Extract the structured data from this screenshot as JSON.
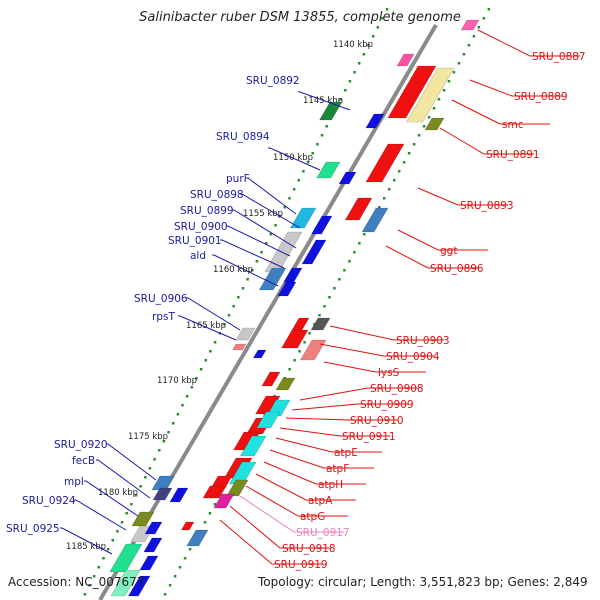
{
  "title": "Salinibacter ruber DSM 13855, complete genome",
  "footer": {
    "accession": "Accession: NC_007677",
    "topology": "Topology: circular; Length: 3,551,823 bp; Genes: 2,849"
  },
  "colors": {
    "backbone": "#8a8a8a",
    "tick_dot": "#2e8b2e",
    "left_label": "#1a1aa8",
    "right_label": "#e01010",
    "faded_label": "#ee80c0"
  },
  "kbp_ticks": [
    "1140 kbp",
    "1145 kbp",
    "1150 kbp",
    "1155 kbp",
    "1160 kbp",
    "1165 kbp",
    "1170 kbp",
    "1175 kbp",
    "1180 kbp",
    "1185 kbp"
  ],
  "left_labels": [
    "SRU_0892",
    "SRU_0894",
    "purF",
    "SRU_0898",
    "SRU_0899",
    "SRU_0900",
    "SRU_0901",
    "ald",
    "SRU_0906",
    "rpsT",
    "SRU_0920",
    "fecB",
    "mpl",
    "SRU_0924",
    "SRU_0925"
  ],
  "right_labels": [
    "SRU_0887",
    "SRU_0889",
    "smc",
    "SRU_0891",
    "SRU_0893",
    "ggt",
    "SRU_0896",
    "SRU_0903",
    "SRU_0904",
    "lysS",
    "SRU_0908",
    "SRU_0909",
    "SRU_0910",
    "SRU_0911",
    "atpE",
    "atpF",
    "atpH",
    "atpA",
    "atpG",
    "SRU_0917",
    "SRU_0918",
    "SRU_0919"
  ]
}
